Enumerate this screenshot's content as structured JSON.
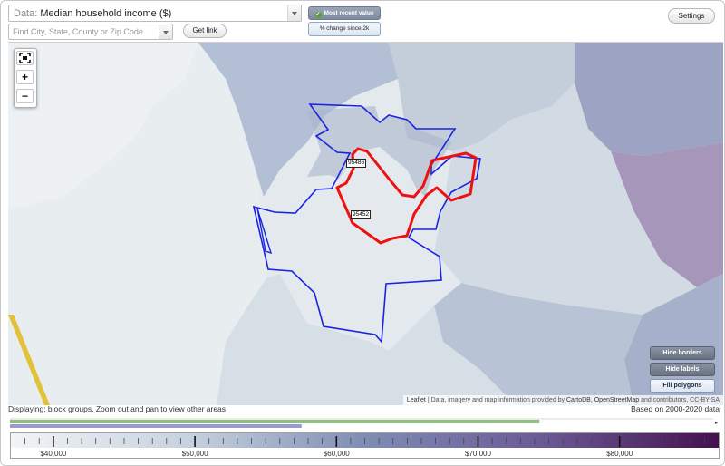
{
  "toolbar": {
    "data_label": "Data:",
    "data_value": "Median household income ($)",
    "find_placeholder": "Find City, State, County or Zip Code",
    "get_link": "Get link",
    "most_recent": "Most recent value",
    "percent_change": "% change since 2k",
    "settings": "Settings"
  },
  "map": {
    "zoom_in": "+",
    "zoom_out": "−",
    "zip_labels": [
      "95486",
      "95452"
    ],
    "buttons": {
      "hide_borders": "Hide borders",
      "hide_labels": "Hide labels",
      "fill_polygons": "Fill polygons"
    },
    "attribution": {
      "leaflet": "Leaflet",
      "text": " | Data, imagery and map information provided by ",
      "carto": "CartoDB",
      "comma": ", ",
      "osm": "OpenStreetMap",
      "rest": " and contributors, CC-BY-SA"
    },
    "colors": {
      "selected_outline": "#ee1111",
      "neighbor_outline": "#1a24e0",
      "road": "#e2c23b"
    }
  },
  "status": {
    "displaying": "Displaying: block groups. Zoom out and pan to view other areas",
    "based_on": "Based on 2000-2020 data"
  },
  "legend": {
    "ticks": [
      "$40,000",
      "$50,000",
      "$60,000",
      "$70,000",
      "$80,000"
    ],
    "range_min": 37000,
    "range_max": 87000,
    "highlight_bars": [
      {
        "name": "",
        "color": "#8cc07a",
        "start": 37000,
        "end": 74400
      },
      {
        "name": "",
        "color": "#9a98cc",
        "start": 37000,
        "end": 57600
      }
    ]
  }
}
